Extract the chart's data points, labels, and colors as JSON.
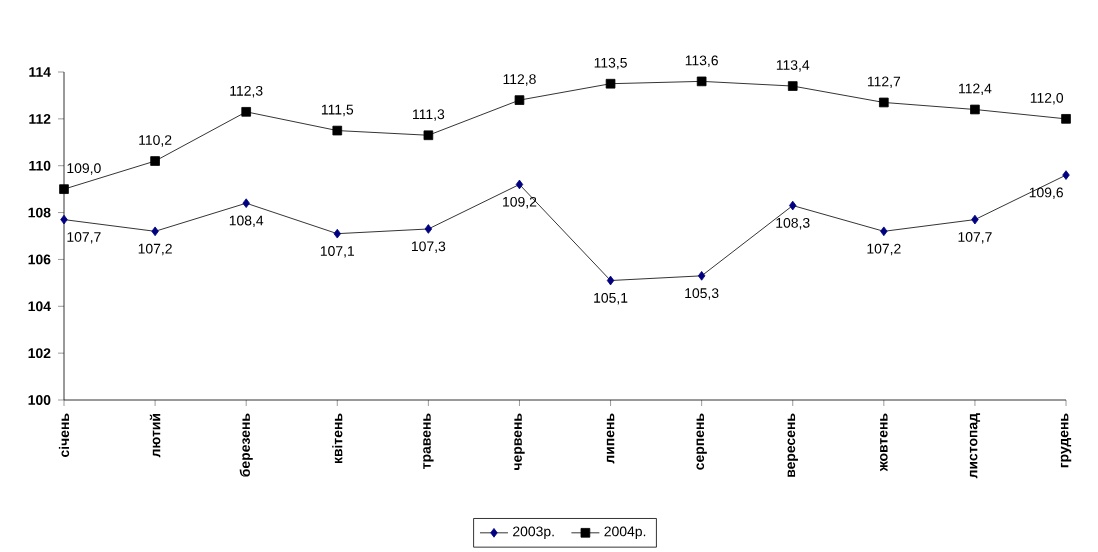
{
  "chart_data": {
    "type": "line",
    "categories": [
      "січень",
      "лютий",
      "березень",
      "квітень",
      "травень",
      "червень",
      "липень",
      "серпень",
      "вересень",
      "жовтень",
      "листопад",
      "грудень"
    ],
    "series": [
      {
        "name": "2003р.",
        "color": "#000080",
        "marker": "diamond",
        "values": [
          107.7,
          107.2,
          108.4,
          107.1,
          107.3,
          109.2,
          105.1,
          105.3,
          108.3,
          107.2,
          107.7,
          109.6
        ],
        "value_labels": [
          "107,7",
          "107,2",
          "108,4",
          "107,1",
          "107,3",
          "109,2",
          "105,1",
          "105,3",
          "108,3",
          "107,2",
          "107,7",
          "109,6"
        ]
      },
      {
        "name": "2004р.",
        "color": "#000000",
        "marker": "square",
        "values": [
          109.0,
          110.2,
          112.3,
          111.5,
          111.3,
          112.8,
          113.5,
          113.6,
          113.4,
          112.7,
          112.4,
          112.0
        ],
        "value_labels": [
          "109,0",
          "110,2",
          "112,3",
          "111,5",
          "111,3",
          "112,8",
          "113,5",
          "113,6",
          "113,4",
          "112,7",
          "112,4",
          "112,0"
        ]
      }
    ],
    "ylim": [
      100,
      114
    ],
    "yticks": [
      100,
      102,
      104,
      106,
      108,
      110,
      112,
      114
    ],
    "legend": "bottom",
    "grid": false,
    "line_style": "solid"
  }
}
